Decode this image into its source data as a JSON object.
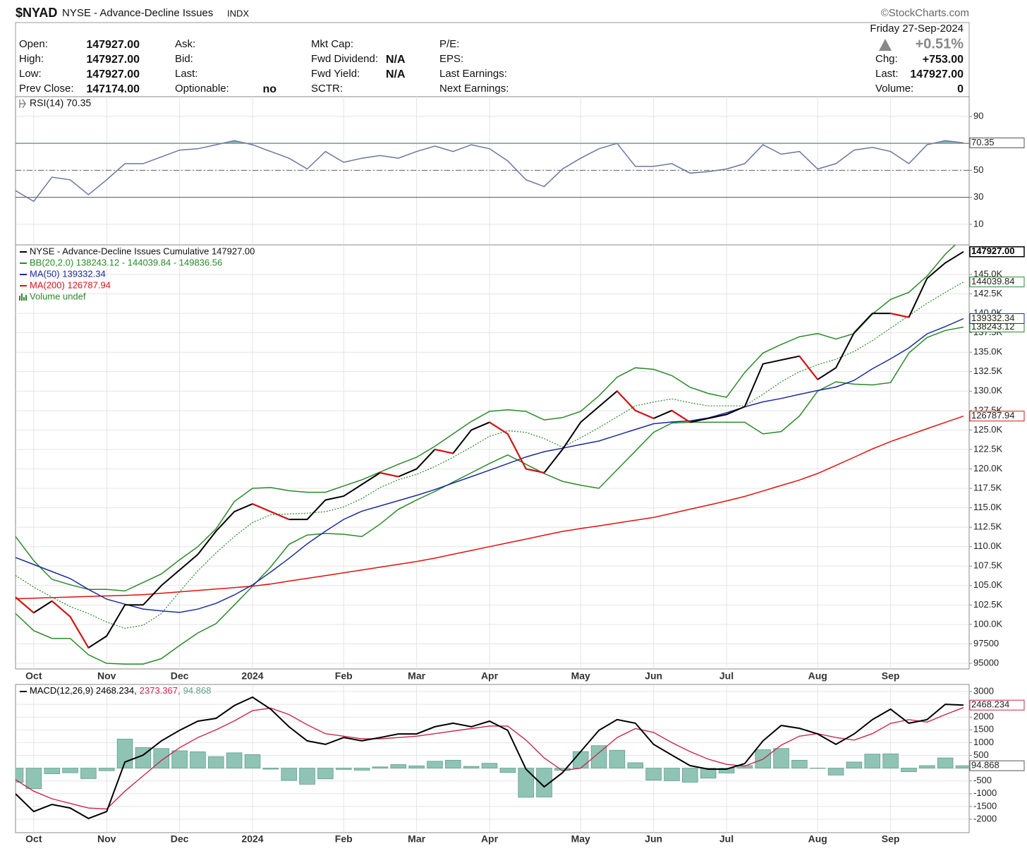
{
  "header": {
    "symbol": "$NYAD",
    "name": "NYSE - Advance-Decline Issues",
    "exchange": "INDX",
    "credit": "©StockCharts.com"
  },
  "quote": {
    "columns": [
      [
        {
          "label": "Open:",
          "value": "147927.00"
        },
        {
          "label": "High:",
          "value": "147927.00"
        },
        {
          "label": "Low:",
          "value": "147927.00"
        },
        {
          "label": "Prev Close:",
          "value": "147174.00"
        }
      ],
      [
        {
          "label": "Ask:"
        },
        {
          "label": "Bid:"
        },
        {
          "label": "Last:"
        },
        {
          "label": "Optionable:",
          "value": "no"
        }
      ],
      [
        {
          "label": "Mkt Cap:"
        },
        {
          "label": "Fwd Dividend:",
          "value": "N/A"
        },
        {
          "label": "Fwd Yield:",
          "value": "N/A"
        },
        {
          "label": "SCTR:"
        }
      ],
      [
        {
          "label": "P/E:"
        },
        {
          "label": "EPS:"
        },
        {
          "label": "Last Earnings:"
        },
        {
          "label": "Next Earnings:"
        }
      ]
    ],
    "date": "Friday 27-Sep-2024",
    "change_pct": "+0.51%",
    "stats": [
      {
        "label": "Chg:",
        "value": "+753.00"
      },
      {
        "label": "Last:",
        "value": "147927.00"
      },
      {
        "label": "Volume:",
        "value": "0"
      }
    ]
  },
  "chart_data": {
    "type": "line",
    "categories": [
      null,
      "Oct",
      null,
      null,
      null,
      "Nov",
      null,
      null,
      null,
      "Dec",
      null,
      null,
      null,
      "2024",
      null,
      null,
      null,
      null,
      "Feb",
      null,
      null,
      null,
      "Mar",
      null,
      null,
      null,
      "Apr",
      null,
      null,
      null,
      null,
      "May",
      null,
      null,
      null,
      "Jun",
      null,
      null,
      null,
      "Jul",
      null,
      null,
      null,
      null,
      "Aug",
      null,
      null,
      null,
      "Sep",
      null,
      null,
      null,
      null
    ],
    "rsi": {
      "title": "RSI(14) 70.35",
      "color": "#6b76a0",
      "fill_color": "#7fb5a8",
      "values": [
        35,
        27,
        45,
        43,
        32,
        43,
        55,
        55,
        60,
        65,
        66,
        69,
        72,
        69,
        64,
        59,
        51,
        64,
        56,
        59,
        61,
        59,
        64,
        68,
        64,
        69,
        66,
        57,
        43,
        38,
        51,
        59,
        66,
        70,
        53,
        53,
        55,
        48,
        49,
        51,
        55,
        69,
        62,
        64,
        51,
        55,
        65,
        67,
        64,
        55,
        69,
        72,
        70.35
      ],
      "ylim": [
        -5.2,
        104.6
      ],
      "yticks": [
        10,
        30,
        50,
        70,
        90
      ],
      "levels": [
        70,
        30
      ],
      "midline": 50
    },
    "price": {
      "ylim": [
        94274,
        148811
      ],
      "yticks": [
        95000,
        97500,
        {
          "value": 100000,
          "label": "100.0K"
        },
        {
          "value": 102500,
          "label": "102.5K"
        },
        {
          "value": 105000,
          "label": "105.0K"
        },
        {
          "value": 107500,
          "label": "107.5K"
        },
        {
          "value": 110000,
          "label": "110.0K"
        },
        {
          "value": 112500,
          "label": "112.5K"
        },
        {
          "value": 115000,
          "label": "115.0K"
        },
        {
          "value": 117500,
          "label": "117.5K"
        },
        {
          "value": 120000,
          "label": "120.0K"
        },
        {
          "value": 122500,
          "label": "122.5K"
        },
        {
          "value": 125000,
          "label": "125.0K"
        },
        {
          "value": 127500,
          "label": "127.5K"
        },
        {
          "value": 130000,
          "label": "130.0K"
        },
        {
          "value": 132500,
          "label": "132.5K"
        },
        {
          "value": 135000,
          "label": "135.0K"
        },
        {
          "value": 137500,
          "label": "137.5K"
        },
        {
          "value": 140000,
          "label": "140.0K"
        },
        {
          "value": 142500,
          "label": "142.5K"
        },
        {
          "value": 145000,
          "label": "145.0K"
        }
      ],
      "volume_legend": "Volume undef",
      "series": [
        {
          "name": "NYSE - Advance-Decline Issues Cumulative 147927.00",
          "color": "#000000",
          "down_color": "#e01010",
          "values": [
            103500,
            101500,
            103000,
            101000,
            97000,
            98500,
            102500,
            102500,
            105000,
            107000,
            109000,
            112000,
            114500,
            115500,
            114500,
            113500,
            113500,
            116000,
            116500,
            118000,
            119500,
            119000,
            120000,
            122500,
            122000,
            125000,
            126000,
            124500,
            120000,
            119500,
            122500,
            126000,
            128000,
            130000,
            127500,
            126500,
            127500,
            126000,
            126500,
            127000,
            128000,
            133500,
            134000,
            134500,
            131500,
            133000,
            137500,
            140000,
            140000,
            139500,
            144500,
            146500,
            147927
          ],
          "value_labels": [
            null,
            null,
            null,
            null,
            null,
            null,
            null,
            null,
            null,
            null,
            null,
            null,
            null,
            null,
            null,
            null,
            null,
            null,
            null,
            null,
            null,
            null,
            null,
            null,
            null,
            null,
            null,
            null,
            null,
            null,
            null,
            null,
            null,
            null,
            null,
            null,
            null,
            null,
            null,
            null,
            null,
            null,
            null,
            null,
            null,
            null,
            null,
            null,
            null,
            null,
            null,
            null,
            "147927.00"
          ]
        },
        {
          "name": "BB(20,2.0) 138243.12 - 144039.84 - 149836.56",
          "color": "#2a8a2a",
          "upper": [
            111300,
            108200,
            105800,
            105100,
            104500,
            104500,
            104300,
            105400,
            106500,
            108300,
            110000,
            112300,
            115800,
            117500,
            117600,
            117200,
            117000,
            117000,
            117800,
            118600,
            119600,
            120600,
            121500,
            122900,
            124500,
            126100,
            127400,
            127600,
            127400,
            126300,
            126600,
            127400,
            129400,
            131800,
            133000,
            132800,
            132000,
            130500,
            129700,
            129200,
            132400,
            134900,
            136000,
            137000,
            137400,
            136700,
            137400,
            139900,
            141800,
            142700,
            144800,
            147600,
            149836.56
          ],
          "middle": [
            106300,
            104800,
            103500,
            102300,
            101400,
            100300,
            99500,
            99900,
            101400,
            104200,
            106900,
            109200,
            111300,
            113100,
            114100,
            114200,
            114300,
            114500,
            115100,
            116200,
            117600,
            118600,
            119300,
            120300,
            121500,
            122800,
            124200,
            124900,
            124700,
            123900,
            122800,
            124000,
            125300,
            126700,
            128100,
            128600,
            129000,
            128500,
            128100,
            128100,
            128100,
            129600,
            131200,
            132500,
            133400,
            134100,
            135100,
            136500,
            138100,
            139700,
            141300,
            142700,
            144039.84
          ],
          "lower": [
            101400,
            99200,
            98200,
            98200,
            96100,
            95000,
            94900,
            94900,
            95600,
            97300,
            98900,
            100100,
            102500,
            104900,
            107400,
            110300,
            111500,
            111700,
            111600,
            111300,
            112900,
            114800,
            116000,
            117100,
            118300,
            119500,
            120700,
            121800,
            120600,
            119400,
            118400,
            117900,
            117500,
            119900,
            122300,
            124700,
            125900,
            126000,
            126000,
            126000,
            126000,
            124500,
            124800,
            126800,
            130000,
            131200,
            130900,
            130800,
            131100,
            134900,
            136900,
            137800,
            138243.12
          ]
        },
        {
          "name": "MA(50) 139332.34",
          "color": "#1c2b9e",
          "values": [
            108600,
            107700,
            106800,
            105900,
            104500,
            103250,
            102600,
            101980,
            101740,
            101540,
            101970,
            102700,
            103790,
            105080,
            106740,
            108490,
            110360,
            112000,
            113500,
            114560,
            115240,
            115920,
            116600,
            117340,
            118180,
            119000,
            119840,
            120670,
            121530,
            122210,
            122660,
            123130,
            123580,
            124330,
            125070,
            125810,
            126030,
            126180,
            126560,
            127210,
            127980,
            128620,
            129060,
            129580,
            130080,
            130530,
            131390,
            132880,
            134160,
            135560,
            137370,
            138300,
            139332.34
          ]
        },
        {
          "name": "MA(200) 126787.94",
          "color": "#e01010",
          "values": [
            103300,
            103370,
            103450,
            103520,
            103590,
            103670,
            103740,
            103820,
            104000,
            104190,
            104370,
            104550,
            104740,
            104920,
            105200,
            105570,
            105930,
            106280,
            106640,
            107000,
            107370,
            107730,
            108090,
            108520,
            109020,
            109510,
            110000,
            110480,
            110970,
            111470,
            111960,
            112330,
            112680,
            113040,
            113400,
            113760,
            114280,
            114820,
            115340,
            115880,
            116460,
            117160,
            117870,
            118570,
            119410,
            120440,
            121500,
            122570,
            123510,
            124340,
            125170,
            125980,
            126787.94
          ]
        }
      ]
    },
    "macd": {
      "legend": [
        "MACD(12,26,9) 2468.234,",
        "2373.367,",
        "94.868"
      ],
      "ylim": [
        -2525,
        3276
      ],
      "yticks": [
        -2000,
        -1500,
        -1000,
        -500,
        0,
        500,
        1000,
        1500,
        2000,
        2500,
        3000
      ],
      "series": [
        {
          "type": "line",
          "color": "#000000",
          "values": [
            -1005,
            -1700,
            -1420,
            -1560,
            -1970,
            -1700,
            240,
            510,
            1070,
            1480,
            1840,
            1950,
            2450,
            2780,
            2310,
            1620,
            1070,
            930,
            1200,
            1070,
            1200,
            1340,
            1340,
            1620,
            1760,
            1620,
            1840,
            1480,
            -40,
            -730,
            -180,
            650,
            1480,
            1900,
            1760,
            930,
            510,
            100,
            -40,
            -40,
            180,
            1070,
            1670,
            1560,
            1340,
            930,
            1340,
            1900,
            2310,
            1760,
            1900,
            2500,
            2468.234
          ]
        },
        {
          "type": "line",
          "color": "#c8284a",
          "values": [
            -450,
            -900,
            -1200,
            -1380,
            -1560,
            -1600,
            -900,
            -300,
            300,
            800,
            1200,
            1500,
            1850,
            2250,
            2350,
            2100,
            1700,
            1350,
            1250,
            1150,
            1150,
            1200,
            1250,
            1350,
            1450,
            1550,
            1650,
            1650,
            1100,
            400,
            -100,
            0,
            600,
            1200,
            1550,
            1400,
            1000,
            650,
            350,
            150,
            80,
            350,
            900,
            1250,
            1350,
            1200,
            1100,
            1350,
            1750,
            1900,
            1800,
            2100,
            2373.367
          ]
        },
        {
          "type": "bar",
          "color": "#5f9e8c",
          "values": [
            -555,
            -800,
            -220,
            -180,
            -410,
            -100,
            1140,
            810,
            770,
            680,
            640,
            450,
            600,
            530,
            -40,
            -480,
            -630,
            -420,
            -50,
            -80,
            50,
            140,
            90,
            270,
            310,
            70,
            190,
            -170,
            -1140,
            -1130,
            -80,
            650,
            880,
            700,
            210,
            -470,
            -490,
            -550,
            -390,
            -190,
            100,
            720,
            770,
            310,
            -10,
            -270,
            240,
            550,
            560,
            -140,
            100,
            400,
            94.868
          ]
        }
      ]
    }
  }
}
